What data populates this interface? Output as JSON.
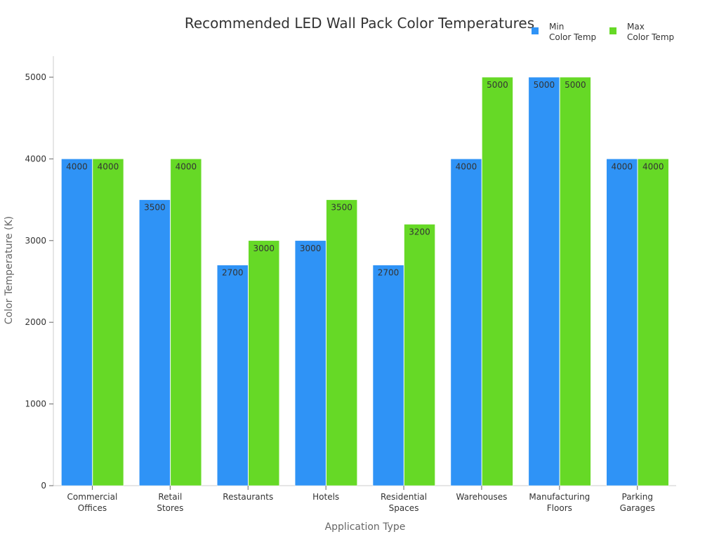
{
  "chart_data": {
    "type": "bar",
    "title": "Recommended LED Wall Pack Color Temperatures",
    "xlabel": "Application Type",
    "ylabel": "Color Temperature (K)",
    "ylim": [
      0,
      5250
    ],
    "yticks": [
      0,
      1000,
      2000,
      3000,
      4000,
      5000
    ],
    "grid": false,
    "legend_position": "top-right",
    "categories": [
      [
        "Commercial",
        "Offices"
      ],
      [
        "Retail",
        "Stores"
      ],
      [
        "Restaurants"
      ],
      [
        "Hotels"
      ],
      [
        "Residential",
        "Spaces"
      ],
      [
        "Warehouses"
      ],
      [
        "Manufacturing",
        "Floors"
      ],
      [
        "Parking",
        "Garages"
      ]
    ],
    "series": [
      {
        "name": [
          "Min",
          "Color Temp"
        ],
        "color": "#2f93f6",
        "values": [
          4000,
          3500,
          2700,
          3000,
          2700,
          4000,
          5000,
          4000
        ]
      },
      {
        "name": [
          "Max",
          "Color Temp"
        ],
        "color": "#66d926",
        "values": [
          4000,
          4000,
          3000,
          3500,
          3200,
          5000,
          5000,
          4000
        ]
      }
    ]
  }
}
